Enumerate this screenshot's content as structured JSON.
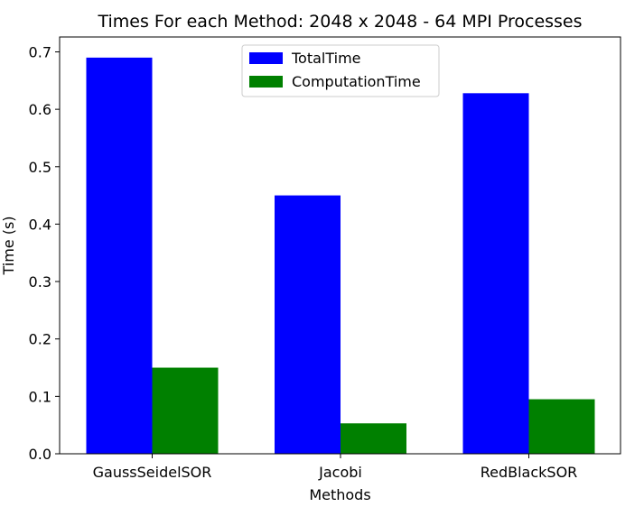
{
  "chart_data": {
    "type": "bar",
    "title": "Times For each Method: 2048 x 2048 - 64 MPI Processes",
    "xlabel": "Methods",
    "ylabel": "Time (s)",
    "categories": [
      "GaussSeidelSOR",
      "Jacobi",
      "RedBlackSOR"
    ],
    "series": [
      {
        "name": "TotalTime",
        "color": "#0000ff",
        "values": [
          0.69,
          0.45,
          0.628
        ]
      },
      {
        "name": "ComputationTime",
        "color": "#008000",
        "values": [
          0.15,
          0.053,
          0.095
        ]
      }
    ],
    "ylim": [
      0,
      0.7
    ],
    "yticks": [
      "0.0",
      "0.1",
      "0.2",
      "0.3",
      "0.4",
      "0.5",
      "0.6",
      "0.7"
    ],
    "grid": false,
    "legend_position": "top-center"
  }
}
